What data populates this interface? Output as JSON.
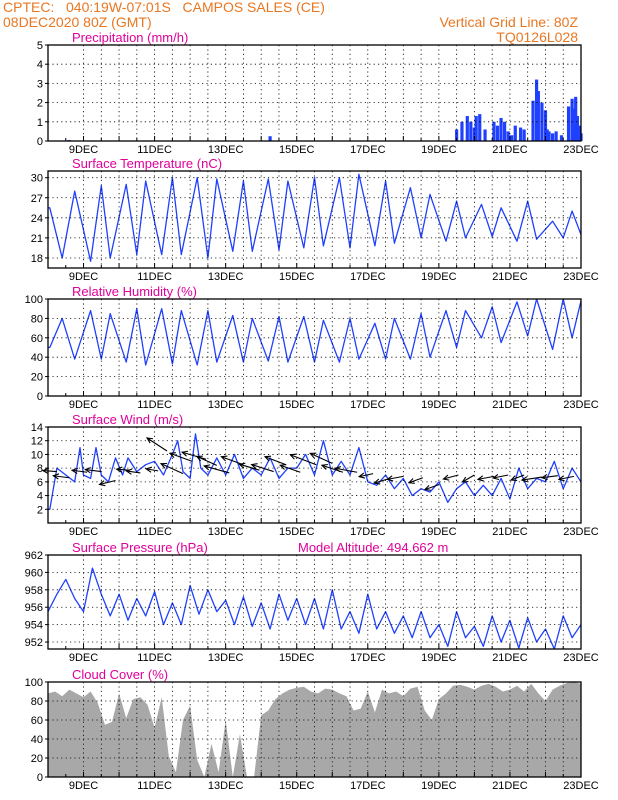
{
  "header": {
    "line1_left": "CPTEC:   040:19W-07:01S   CAMPOS SALES (CE)",
    "line2_left": "08DEC2020 80Z (GMT)",
    "line1_right": "Vertical Grid Line: 80Z",
    "line2_right": "TQ0126L028"
  },
  "colors": {
    "header": "#e87722",
    "title": "#e0009a",
    "series": "#2040ff",
    "cloud": "#a8a8a8",
    "wind_arrow": "#000000"
  },
  "chart_data": [
    {
      "type": "bar",
      "title": "Precipitation (mm/h)",
      "ylim": [
        0,
        5
      ],
      "yticks": [
        0,
        1,
        2,
        3,
        4,
        5
      ],
      "xlim": [
        8,
        23
      ],
      "xtick_labels": [
        "9DEC",
        "11DEC",
        "13DEC",
        "15DEC",
        "17DEC",
        "19DEC",
        "21DEC",
        "23DEC"
      ],
      "grid": true,
      "series": [
        {
          "name": "precipitation",
          "x": [
            8.6,
            14.25,
            19.5,
            19.65,
            19.8,
            19.9,
            20.0,
            20.05,
            20.15,
            20.3,
            20.55,
            20.65,
            20.75,
            20.85,
            20.95,
            21.05,
            21.15,
            21.3,
            21.4,
            21.65,
            21.75,
            21.8,
            21.9,
            22.0,
            22.05,
            22.1,
            22.2,
            22.3,
            22.45,
            22.65,
            22.75,
            22.8,
            22.85,
            22.9,
            22.95,
            23.0
          ],
          "values": [
            0.05,
            0.25,
            0.6,
            1.0,
            1.3,
            1.0,
            0.7,
            1.3,
            1.4,
            0.6,
            1.0,
            0.8,
            1.2,
            1.0,
            0.5,
            0.3,
            0.8,
            0.7,
            0.6,
            2.1,
            3.2,
            2.6,
            2.0,
            1.6,
            0.6,
            0.5,
            0.4,
            0.5,
            0.3,
            1.8,
            2.2,
            1.7,
            2.3,
            1.3,
            0.8,
            0.4
          ]
        }
      ]
    },
    {
      "type": "line",
      "title": "Surface Temperature (nC)",
      "ylim": [
        16.5,
        31
      ],
      "yticks": [
        18,
        21,
        24,
        27,
        30
      ],
      "xlim": [
        8,
        23
      ],
      "xtick_labels": [
        "9DEC",
        "11DEC",
        "13DEC",
        "15DEC",
        "17DEC",
        "19DEC",
        "21DEC",
        "23DEC"
      ],
      "grid": true,
      "series": [
        {
          "name": "temperature",
          "x": [
            8.0,
            8.05,
            8.4,
            8.75,
            9.2,
            9.5,
            9.75,
            10.2,
            10.5,
            10.75,
            11.2,
            11.5,
            11.75,
            12.2,
            12.5,
            12.75,
            13.2,
            13.5,
            13.75,
            14.2,
            14.5,
            14.75,
            15.2,
            15.5,
            15.75,
            16.2,
            16.5,
            16.75,
            17.2,
            17.5,
            17.75,
            18.2,
            18.5,
            18.75,
            19.2,
            19.5,
            19.75,
            20.2,
            20.5,
            20.75,
            21.2,
            21.5,
            21.75,
            22.2,
            22.5,
            22.75,
            23.0
          ],
          "values": [
            25.5,
            25.5,
            18.0,
            28.0,
            17.5,
            28.8,
            18.0,
            29.0,
            18.5,
            29.5,
            18.5,
            30.0,
            18.5,
            30.0,
            18.0,
            29.8,
            19.0,
            29.5,
            19.0,
            29.8,
            19.2,
            29.5,
            19.5,
            30.0,
            19.8,
            30.0,
            19.5,
            30.5,
            19.8,
            29.5,
            20.2,
            28.5,
            21.0,
            27.5,
            20.5,
            26.5,
            21.0,
            26.0,
            21.2,
            25.5,
            20.5,
            26.5,
            20.8,
            23.5,
            21.0,
            25.0,
            21.5
          ]
        }
      ]
    },
    {
      "type": "line",
      "title": "Relative Humidity (%)",
      "ylim": [
        0,
        100
      ],
      "yticks": [
        0,
        20,
        40,
        60,
        80,
        100
      ],
      "xlim": [
        8,
        23
      ],
      "xtick_labels": [
        "9DEC",
        "11DEC",
        "13DEC",
        "15DEC",
        "17DEC",
        "19DEC",
        "21DEC",
        "23DEC"
      ],
      "grid": true,
      "series": [
        {
          "name": "humidity",
          "x": [
            8.0,
            8.05,
            8.4,
            8.75,
            9.2,
            9.5,
            9.75,
            10.2,
            10.5,
            10.75,
            11.2,
            11.5,
            11.75,
            12.2,
            12.5,
            12.75,
            13.2,
            13.5,
            13.75,
            14.2,
            14.5,
            14.75,
            15.2,
            15.5,
            15.75,
            16.2,
            16.5,
            16.75,
            17.2,
            17.5,
            17.75,
            18.2,
            18.5,
            18.75,
            19.2,
            19.5,
            19.75,
            20.2,
            20.5,
            20.75,
            21.2,
            21.5,
            21.75,
            22.2,
            22.5,
            22.75,
            23.0
          ],
          "values": [
            50,
            50,
            80,
            38,
            88,
            38,
            85,
            35,
            90,
            32,
            90,
            33,
            88,
            32,
            88,
            35,
            83,
            35,
            80,
            36,
            82,
            35,
            82,
            35,
            78,
            35,
            80,
            38,
            75,
            38,
            80,
            38,
            85,
            40,
            88,
            50,
            88,
            60,
            92,
            55,
            97,
            62,
            100,
            48,
            100,
            60,
            98
          ]
        }
      ]
    },
    {
      "type": "line",
      "title": "Surface Wind (m/s)",
      "ylim": [
        0,
        14
      ],
      "yticks": [
        2,
        4,
        6,
        8,
        10,
        12,
        14
      ],
      "xlim": [
        8,
        23
      ],
      "xtick_labels": [
        "9DEC",
        "11DEC",
        "13DEC",
        "15DEC",
        "17DEC",
        "19DEC",
        "21DEC",
        "23DEC"
      ],
      "grid": true,
      "wind_direction_arrows": true,
      "series": [
        {
          "name": "wind_speed",
          "x": [
            8.0,
            8.05,
            8.25,
            8.5,
            8.75,
            8.9,
            9.0,
            9.2,
            9.35,
            9.5,
            9.7,
            9.9,
            10.1,
            10.25,
            10.5,
            10.75,
            11.0,
            11.25,
            11.5,
            11.65,
            11.8,
            12.0,
            12.15,
            12.3,
            12.5,
            12.75,
            13.0,
            13.25,
            13.5,
            13.75,
            14.0,
            14.25,
            14.5,
            14.75,
            15.0,
            15.25,
            15.5,
            15.75,
            16.0,
            16.25,
            16.5,
            16.75,
            17.0,
            17.25,
            17.5,
            17.75,
            18.0,
            18.25,
            18.5,
            18.75,
            19.0,
            19.25,
            19.5,
            19.75,
            20.0,
            20.25,
            20.5,
            20.75,
            21.0,
            21.25,
            21.5,
            21.75,
            22.0,
            22.25,
            22.5,
            22.75,
            23.0
          ],
          "values": [
            2,
            2,
            8,
            7,
            6,
            11,
            7,
            6.5,
            11,
            7,
            6,
            9.5,
            7,
            9.5,
            7.5,
            8.5,
            9,
            7,
            10,
            12,
            7.5,
            6.5,
            13,
            8,
            7,
            9.5,
            7,
            10,
            6.5,
            8,
            7,
            9.5,
            6.5,
            8,
            8,
            10,
            7,
            12,
            7,
            9,
            7,
            11,
            6,
            5.5,
            7,
            5,
            6.5,
            4,
            5,
            4.5,
            6,
            3,
            5,
            6,
            4,
            5.5,
            4,
            6.5,
            3.5,
            8,
            5,
            6.5,
            6,
            9,
            5,
            8,
            6
          ]
        }
      ],
      "wind_arrows": [
        {
          "x": 8.25,
          "v": 7.5,
          "dx": -14,
          "dy": -1
        },
        {
          "x": 8.6,
          "v": 6.6,
          "dx": -16,
          "dy": -2
        },
        {
          "x": 9.1,
          "v": 7.4,
          "dx": -15,
          "dy": -2
        },
        {
          "x": 9.5,
          "v": 7.5,
          "dx": -16,
          "dy": -2
        },
        {
          "x": 9.9,
          "v": 6.2,
          "dx": -16,
          "dy": 4
        },
        {
          "x": 10.3,
          "v": 7.7,
          "dx": -13,
          "dy": -1
        },
        {
          "x": 10.6,
          "v": 7.3,
          "dx": -14,
          "dy": -2
        },
        {
          "x": 11.1,
          "v": 7.6,
          "dx": -12,
          "dy": -2
        },
        {
          "x": 11.35,
          "v": 10.5,
          "dx": -20,
          "dy": -13
        },
        {
          "x": 11.8,
          "v": 7.2,
          "dx": -22,
          "dy": -10
        },
        {
          "x": 12.05,
          "v": 9.0,
          "dx": -22,
          "dy": -8
        },
        {
          "x": 12.45,
          "v": 9.3,
          "dx": -24,
          "dy": -7
        },
        {
          "x": 12.75,
          "v": 8.4,
          "dx": -20,
          "dy": -9
        },
        {
          "x": 13.1,
          "v": 7.3,
          "dx": -25,
          "dy": -7
        },
        {
          "x": 13.5,
          "v": 8.5,
          "dx": -22,
          "dy": -8
        },
        {
          "x": 13.95,
          "v": 7.7,
          "dx": -20,
          "dy": -6
        },
        {
          "x": 14.35,
          "v": 7.5,
          "dx": -22,
          "dy": -7
        },
        {
          "x": 14.7,
          "v": 8.5,
          "dx": -21,
          "dy": -8
        },
        {
          "x": 15.1,
          "v": 7.4,
          "dx": -20,
          "dy": -7
        },
        {
          "x": 15.55,
          "v": 8.5,
          "dx": -26,
          "dy": -10
        },
        {
          "x": 16.0,
          "v": 8.7,
          "dx": -22,
          "dy": -10
        },
        {
          "x": 16.3,
          "v": 7.4,
          "dx": -21,
          "dy": -7
        },
        {
          "x": 16.7,
          "v": 7.4,
          "dx": -22,
          "dy": -4
        },
        {
          "x": 17.15,
          "v": 7.2,
          "dx": -14,
          "dy": 3
        },
        {
          "x": 17.55,
          "v": 6.4,
          "dx": -13,
          "dy": 4
        },
        {
          "x": 18.0,
          "v": 6.8,
          "dx": -16,
          "dy": 3
        },
        {
          "x": 18.55,
          "v": 6.6,
          "dx": -14,
          "dy": 5
        },
        {
          "x": 19.0,
          "v": 5.6,
          "dx": -14,
          "dy": 5
        },
        {
          "x": 19.55,
          "v": 7.0,
          "dx": -15,
          "dy": 4
        },
        {
          "x": 20.0,
          "v": 7.0,
          "dx": -12,
          "dy": 7
        },
        {
          "x": 20.55,
          "v": 6.8,
          "dx": -16,
          "dy": 3
        },
        {
          "x": 20.95,
          "v": 7.0,
          "dx": -15,
          "dy": 3
        },
        {
          "x": 21.4,
          "v": 7.0,
          "dx": -13,
          "dy": 5
        },
        {
          "x": 21.9,
          "v": 6.7,
          "dx": -20,
          "dy": 3
        },
        {
          "x": 22.35,
          "v": 6.9,
          "dx": -16,
          "dy": 2
        },
        {
          "x": 22.8,
          "v": 6.8,
          "dx": -15,
          "dy": 3
        }
      ]
    },
    {
      "type": "line",
      "title": "Surface Pressure (hPa)",
      "annotation": "Model Altitude: 494.662 m",
      "ylim": [
        951.2,
        962
      ],
      "yticks": [
        952,
        954,
        956,
        958,
        960,
        962
      ],
      "xlim": [
        8,
        23
      ],
      "xtick_labels": [
        "9DEC",
        "11DEC",
        "13DEC",
        "15DEC",
        "17DEC",
        "19DEC",
        "21DEC",
        "23DEC"
      ],
      "grid": true,
      "series": [
        {
          "name": "pressure",
          "x": [
            8.0,
            8.25,
            8.5,
            8.75,
            9.0,
            9.25,
            9.5,
            9.75,
            10.0,
            10.25,
            10.5,
            10.75,
            11.0,
            11.25,
            11.5,
            11.75,
            12.0,
            12.25,
            12.5,
            12.75,
            13.0,
            13.25,
            13.5,
            13.75,
            14.0,
            14.25,
            14.5,
            14.75,
            15.0,
            15.25,
            15.5,
            15.75,
            16.0,
            16.25,
            16.5,
            16.75,
            17.0,
            17.25,
            17.5,
            17.75,
            18.0,
            18.25,
            18.5,
            18.75,
            19.0,
            19.25,
            19.5,
            19.75,
            20.0,
            20.25,
            20.5,
            20.75,
            21.0,
            21.25,
            21.5,
            21.75,
            22.0,
            22.25,
            22.5,
            22.75,
            23.0
          ],
          "values": [
            955.5,
            957.5,
            959.2,
            957.0,
            955.5,
            960.5,
            957.5,
            955.0,
            957.5,
            954.5,
            957.0,
            955.0,
            957.8,
            954.0,
            956.5,
            954.0,
            958.5,
            955.2,
            958.0,
            955.5,
            956.8,
            954.0,
            957.2,
            953.8,
            956.5,
            953.5,
            957.5,
            954.5,
            957.0,
            954.0,
            957.0,
            953.5,
            958.0,
            953.5,
            955.5,
            953.0,
            957.5,
            953.5,
            955.5,
            953.0,
            955.0,
            952.5,
            955.5,
            952.5,
            954.0,
            951.5,
            955.5,
            952.5,
            953.8,
            951.5,
            955.0,
            952.0,
            954.5,
            951.3,
            954.8,
            952.0,
            953.5,
            951.2,
            955.0,
            952.5,
            954.0
          ]
        }
      ]
    },
    {
      "type": "area",
      "title": "Cloud Cover (%)",
      "ylim": [
        0,
        100
      ],
      "yticks": [
        0,
        20,
        40,
        60,
        80,
        100
      ],
      "xlim": [
        8,
        23
      ],
      "xtick_labels": [
        "9DEC",
        "11DEC",
        "13DEC",
        "15DEC",
        "17DEC",
        "19DEC",
        "21DEC",
        "23DEC"
      ],
      "grid": true,
      "series": [
        {
          "name": "cloud_cover",
          "x": [
            8.0,
            8.2,
            8.4,
            8.6,
            8.8,
            9.0,
            9.2,
            9.4,
            9.6,
            9.8,
            10.0,
            10.2,
            10.4,
            10.6,
            10.8,
            11.0,
            11.2,
            11.4,
            11.6,
            11.8,
            12.0,
            12.2,
            12.4,
            12.6,
            12.8,
            13.0,
            13.2,
            13.4,
            13.6,
            13.8,
            14.0,
            14.2,
            14.4,
            14.6,
            14.8,
            15.0,
            15.2,
            15.4,
            15.6,
            15.8,
            16.0,
            16.2,
            16.4,
            16.6,
            16.8,
            17.0,
            17.2,
            17.4,
            17.6,
            17.8,
            18.0,
            18.2,
            18.4,
            18.6,
            18.8,
            19.0,
            19.2,
            19.4,
            19.6,
            19.8,
            20.0,
            20.2,
            20.4,
            20.6,
            20.8,
            21.0,
            21.2,
            21.4,
            21.6,
            21.8,
            22.0,
            22.2,
            22.4,
            22.6,
            22.8,
            23.0
          ],
          "values": [
            88,
            90,
            85,
            92,
            88,
            84,
            90,
            78,
            55,
            58,
            88,
            62,
            82,
            84,
            76,
            52,
            84,
            22,
            5,
            60,
            75,
            18,
            0,
            35,
            5,
            60,
            0,
            45,
            0,
            0,
            65,
            70,
            82,
            88,
            92,
            94,
            95,
            90,
            88,
            93,
            92,
            88,
            85,
            70,
            72,
            90,
            68,
            92,
            88,
            90,
            85,
            93,
            95,
            70,
            60,
            82,
            88,
            96,
            97,
            95,
            92,
            96,
            98,
            95,
            90,
            92,
            96,
            90,
            98,
            88,
            80,
            92,
            96,
            99,
            100,
            98
          ]
        }
      ]
    }
  ]
}
